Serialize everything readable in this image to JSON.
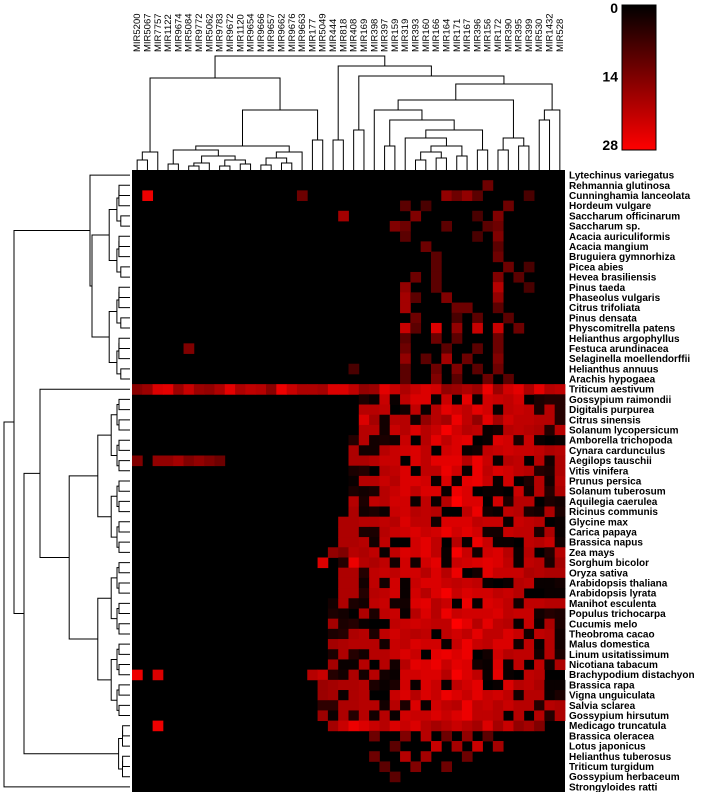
{
  "chart_data": {
    "type": "heatmap",
    "title": "",
    "xlabel": "",
    "ylabel": "",
    "columns": [
      "MIR5200",
      "MIR5067",
      "MIR7757",
      "MIR1122",
      "MIR9674",
      "MIR5084",
      "MIR9772",
      "MIR5062",
      "MIR9783",
      "MIR9672",
      "MIR1120",
      "MIR9654",
      "MIR9666",
      "MIR9657",
      "MIR9662",
      "MIR9676",
      "MIR9663",
      "MIR177",
      "MIR5049",
      "MIR444",
      "MIR818",
      "MIR408",
      "MIR169",
      "MIR398",
      "MIR397",
      "MIR159",
      "MIR319",
      "MIR393",
      "MIR160",
      "MIR166",
      "MIR164",
      "MIR171",
      "MIR167",
      "MIR396",
      "MIR156",
      "MIR172",
      "MIR390",
      "MIR395",
      "MIR399",
      "MIR530",
      "MIR1432",
      "MIR528"
    ],
    "rows": [
      "Lytechinus variegatus",
      "Rehmannia glutinosa",
      "Cunninghamia lanceolata",
      "Hordeum vulgare",
      "Saccharum officinarum",
      "Saccharum sp.",
      "Acacia auriculiformis",
      "Acacia mangium",
      "Bruguiera gymnorhiza",
      "Picea abies",
      "Hevea brasiliensis",
      "Pinus taeda",
      "Phaseolus vulgaris",
      "Citrus trifoliata",
      "Pinus densata",
      "Physcomitrella patens",
      "Helianthus argophyllus",
      "Festuca arundinacea",
      "Selaginella moellendorffii",
      "Helianthus annuus",
      "Arachis hypogaea",
      "Triticum aestivum",
      "Gossypium raimondii",
      "Digitalis purpurea",
      "Citrus sinensis",
      "Solanum lycopersicum",
      "Amborella trichopoda",
      "Cynara cardunculus",
      "Aegilops tauschii",
      "Vitis vinifera",
      "Prunus persica",
      "Solanum tuberosum",
      "Aquilegia caerulea",
      "Ricinus communis",
      "Glycine max",
      "Carica papaya",
      "Brassica napus",
      "Zea mays",
      "Sorghum bicolor",
      "Oryza sativa",
      "Arabidopsis thaliana",
      "Arabidopsis lyrata",
      "Manihot esculenta",
      "Populus trichocarpa",
      "Cucumis melo",
      "Theobroma cacao",
      "Malus domestica",
      "Linum usitatissimum",
      "Nicotiana tabacum",
      "Brachypodium distachyon",
      "Brassica rapa",
      "Vigna unguiculata",
      "Salvia sclarea",
      "Gossypium hirsutum",
      "Medicago truncatula",
      "Brassica oleracea",
      "Lotus japonicus",
      "Helianthus tuberosus",
      "Triticum turgidum",
      "Gossypium herbaceum",
      "Strongyloides ratti"
    ],
    "color_scale": {
      "min": 0,
      "max": 28,
      "ticks": [
        0,
        14,
        28
      ],
      "colors": [
        "#000000",
        "#ff0000"
      ]
    },
    "hot_cells": [
      [
        1,
        34,
        12
      ],
      [
        2,
        1,
        26
      ],
      [
        2,
        16,
        12
      ],
      [
        2,
        30,
        16
      ],
      [
        2,
        31,
        12
      ],
      [
        2,
        32,
        16
      ],
      [
        2,
        33,
        10
      ],
      [
        2,
        38,
        8
      ],
      [
        3,
        26,
        10
      ],
      [
        3,
        28,
        8
      ],
      [
        3,
        36,
        12
      ],
      [
        4,
        20,
        18
      ],
      [
        4,
        27,
        14
      ],
      [
        4,
        33,
        8
      ],
      [
        4,
        35,
        14
      ],
      [
        5,
        25,
        14
      ],
      [
        5,
        26,
        12
      ],
      [
        5,
        30,
        10
      ],
      [
        5,
        34,
        10
      ],
      [
        5,
        35,
        12
      ],
      [
        6,
        26,
        10
      ],
      [
        6,
        35,
        14
      ],
      [
        6,
        33,
        8
      ],
      [
        7,
        28,
        12
      ],
      [
        7,
        35,
        10
      ],
      [
        8,
        29,
        10
      ],
      [
        8,
        35,
        12
      ],
      [
        9,
        29,
        10
      ],
      [
        9,
        36,
        12
      ],
      [
        9,
        38,
        8
      ],
      [
        10,
        27,
        12
      ],
      [
        10,
        29,
        10
      ],
      [
        10,
        35,
        14
      ],
      [
        10,
        37,
        10
      ],
      [
        11,
        26,
        16
      ],
      [
        11,
        29,
        10
      ],
      [
        11,
        35,
        20
      ],
      [
        11,
        38,
        8
      ],
      [
        12,
        26,
        18
      ],
      [
        12,
        27,
        10
      ],
      [
        12,
        30,
        14
      ],
      [
        12,
        35,
        16
      ],
      [
        13,
        26,
        18
      ],
      [
        13,
        31,
        12
      ],
      [
        13,
        32,
        12
      ],
      [
        13,
        35,
        10
      ],
      [
        14,
        27,
        12
      ],
      [
        14,
        31,
        8
      ],
      [
        14,
        33,
        10
      ],
      [
        14,
        36,
        10
      ],
      [
        15,
        26,
        22
      ],
      [
        15,
        27,
        10
      ],
      [
        15,
        29,
        24
      ],
      [
        15,
        31,
        16
      ],
      [
        15,
        33,
        22
      ],
      [
        15,
        35,
        22
      ],
      [
        15,
        37,
        12
      ],
      [
        16,
        26,
        10
      ],
      [
        16,
        29,
        12
      ],
      [
        16,
        31,
        10
      ],
      [
        16,
        35,
        12
      ],
      [
        17,
        5,
        14
      ],
      [
        17,
        26,
        12
      ],
      [
        17,
        30,
        10
      ],
      [
        17,
        33,
        10
      ],
      [
        17,
        35,
        12
      ],
      [
        18,
        26,
        16
      ],
      [
        18,
        28,
        10
      ],
      [
        18,
        30,
        18
      ],
      [
        18,
        32,
        12
      ],
      [
        18,
        35,
        14
      ],
      [
        19,
        21,
        8
      ],
      [
        19,
        26,
        10
      ],
      [
        19,
        29,
        12
      ],
      [
        19,
        31,
        14
      ],
      [
        19,
        33,
        10
      ],
      [
        19,
        35,
        12
      ],
      [
        20,
        26,
        10
      ],
      [
        20,
        29,
        14
      ],
      [
        20,
        31,
        10
      ],
      [
        20,
        34,
        12
      ],
      [
        20,
        36,
        10
      ],
      [
        24,
        22,
        24
      ],
      [
        24,
        23,
        18
      ],
      [
        24,
        26,
        20
      ],
      [
        24,
        28,
        16
      ],
      [
        24,
        30,
        18
      ],
      [
        24,
        33,
        16
      ],
      [
        24,
        35,
        18
      ],
      [
        28,
        0,
        14
      ],
      [
        28,
        2,
        16
      ],
      [
        28,
        3,
        16
      ],
      [
        28,
        4,
        18
      ],
      [
        28,
        5,
        14
      ],
      [
        28,
        6,
        16
      ],
      [
        28,
        7,
        14
      ],
      [
        28,
        8,
        12
      ],
      [
        36,
        22,
        20
      ],
      [
        36,
        40,
        22
      ],
      [
        37,
        19,
        16
      ],
      [
        37,
        20,
        14
      ],
      [
        37,
        41,
        20
      ],
      [
        38,
        18,
        24
      ],
      [
        38,
        21,
        26
      ],
      [
        38,
        41,
        18
      ],
      [
        49,
        0,
        26
      ],
      [
        49,
        2,
        24
      ],
      [
        49,
        17,
        20
      ],
      [
        49,
        18,
        22
      ],
      [
        54,
        2,
        26
      ],
      [
        54,
        19,
        18
      ],
      [
        54,
        20,
        22
      ],
      [
        54,
        21,
        26
      ],
      [
        54,
        22,
        24
      ],
      [
        54,
        23,
        22
      ],
      [
        54,
        24,
        20
      ],
      [
        54,
        25,
        24
      ],
      [
        54,
        26,
        22
      ],
      [
        54,
        27,
        24
      ],
      [
        54,
        28,
        20
      ],
      [
        54,
        29,
        18
      ],
      [
        54,
        30,
        20
      ],
      [
        54,
        31,
        22
      ],
      [
        54,
        32,
        20
      ],
      [
        54,
        33,
        18
      ],
      [
        54,
        34,
        24
      ],
      [
        54,
        35,
        18
      ],
      [
        54,
        36,
        22
      ],
      [
        54,
        37,
        16
      ],
      [
        54,
        38,
        18
      ],
      [
        54,
        39,
        14
      ],
      [
        55,
        23,
        12
      ],
      [
        55,
        26,
        14
      ],
      [
        55,
        28,
        20
      ],
      [
        55,
        30,
        12
      ],
      [
        55,
        32,
        16
      ],
      [
        55,
        34,
        10
      ],
      [
        56,
        25,
        10
      ],
      [
        56,
        29,
        22
      ],
      [
        56,
        31,
        18
      ],
      [
        56,
        33,
        22
      ],
      [
        56,
        35,
        18
      ],
      [
        57,
        23,
        12
      ],
      [
        57,
        26,
        20
      ],
      [
        57,
        28,
        18
      ],
      [
        57,
        32,
        12
      ],
      [
        58,
        24,
        10
      ],
      [
        58,
        27,
        14
      ],
      [
        58,
        30,
        12
      ],
      [
        59,
        25,
        10
      ]
    ]
  }
}
